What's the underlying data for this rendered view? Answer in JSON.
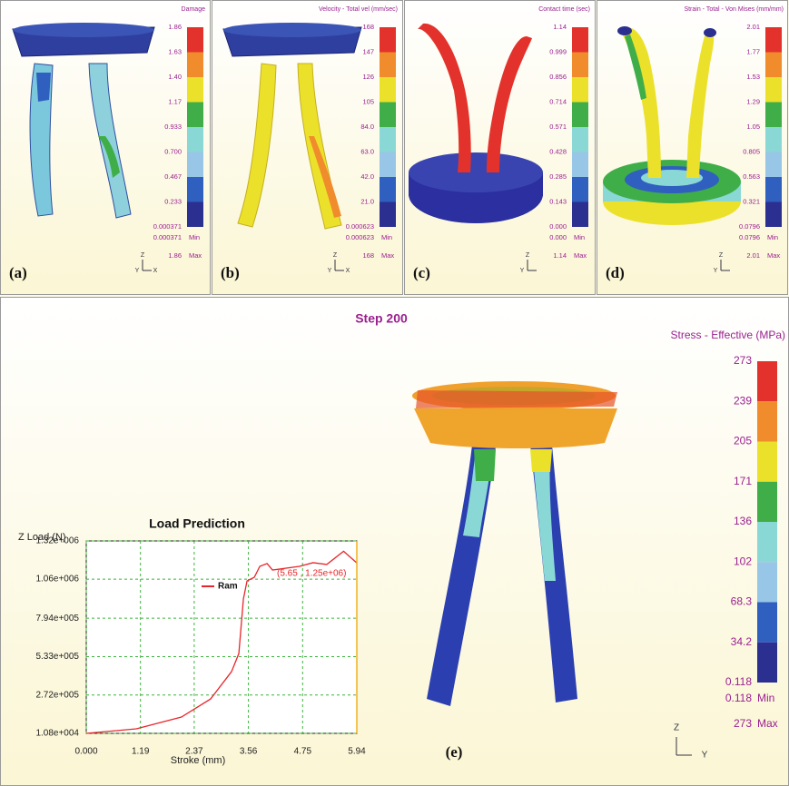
{
  "panels": [
    {
      "label": "(a)",
      "title": "Damage",
      "scale": [
        "1.86",
        "1.63",
        "1.40",
        "1.17",
        "0.933",
        "0.700",
        "0.467",
        "0.233",
        "0.000371"
      ],
      "min": "0.000371",
      "min_label": "Min",
      "max": "1.86",
      "max_label": "Max",
      "axes": [
        "Z",
        "Y",
        "X"
      ]
    },
    {
      "label": "(b)",
      "title": "Velocity - Total vel (mm/sec)",
      "scale": [
        "168",
        "147",
        "126",
        "105",
        "84.0",
        "63.0",
        "42.0",
        "21.0",
        "0.000623"
      ],
      "min": "0.000623",
      "min_label": "Min",
      "max": "168",
      "max_label": "Max",
      "axes": [
        "Z",
        "Y",
        "X"
      ]
    },
    {
      "label": "(c)",
      "title": "Contact time (sec)",
      "scale": [
        "1.14",
        "0.999",
        "0.856",
        "0.714",
        "0.571",
        "0.428",
        "0.285",
        "0.143",
        "0.000"
      ],
      "min": "0.000",
      "min_label": "Min",
      "max": "1.14",
      "max_label": "Max",
      "axes": [
        "Z",
        "Y"
      ]
    },
    {
      "label": "(d)",
      "title": "Strain - Total - Von Mises (mm/mm)",
      "scale": [
        "2.01",
        "1.77",
        "1.53",
        "1.29",
        "1.05",
        "0.805",
        "0.563",
        "0.321",
        "0.0796"
      ],
      "min": "0.0796",
      "min_label": "Min",
      "max": "2.01",
      "max_label": "Max",
      "axes": [
        "Z",
        "Y"
      ]
    }
  ],
  "main": {
    "label": "(e)",
    "step": "Step 200",
    "title": "Stress - Effective (MPa)",
    "scale": [
      "273",
      "239",
      "205",
      "171",
      "136",
      "102",
      "68.3",
      "34.2",
      "0.118"
    ],
    "min": "0.118",
    "min_label": "Min",
    "max": "273",
    "max_label": "Max",
    "axes": [
      "Z",
      "Y"
    ]
  },
  "scale_colors": [
    "#e3322b",
    "#f08c2c",
    "#ece12a",
    "#3fae48",
    "#8ad8d6",
    "#98c6e6",
    "#2f5fbf",
    "#2b2f8f"
  ],
  "chart_data": {
    "type": "line",
    "title": "Load Prediction",
    "xlabel": "Stroke (mm)",
    "ylabel": "Z Load (N)",
    "x": [
      0,
      1.1,
      2.09,
      2.73,
      3.19,
      3.35,
      3.45,
      3.53,
      3.69,
      3.81,
      3.97,
      4.09,
      4.68,
      4.98,
      5.28,
      5.65,
      5.94
    ],
    "series": [
      {
        "name": "Ram",
        "color": "#e8262a",
        "values": [
          10800,
          41700,
          122000,
          245000,
          431000,
          554000,
          925000,
          1048000,
          1073000,
          1147000,
          1166000,
          1122000,
          1147000,
          1172000,
          1160000,
          1250000,
          1170000
        ]
      }
    ],
    "xlim": [
      0,
      5.94
    ],
    "ylim": [
      10800,
      1320000
    ],
    "xticks": [
      {
        "value": 0,
        "label": "0.000"
      },
      1.19,
      2.37,
      3.56,
      4.75,
      5.94
    ],
    "yticks": [
      {
        "value": 10800,
        "label": "1.08e+004"
      },
      {
        "value": 272000,
        "label": "2.72e+005"
      },
      {
        "value": 533000,
        "label": "5.33e+005"
      },
      {
        "value": 794000,
        "label": "7.94e+005"
      },
      {
        "value": 1060000,
        "label": "1.06e+006"
      },
      {
        "value": 1320000,
        "label": "1.32e+006"
      }
    ],
    "annotation": "(5.65 , 1.25e+06)",
    "grid": true,
    "grid_color": "#3cb43c"
  }
}
